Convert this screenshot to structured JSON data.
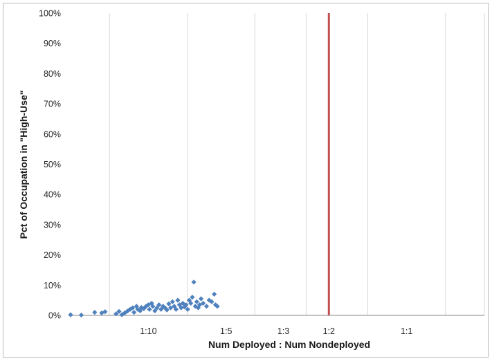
{
  "chart_data": {
    "type": "scatter",
    "title": "",
    "xlabel": "Num Deployed : Num Nondeployed",
    "ylabel": "Pct of Occupation in \"High-Use\"",
    "x_scale": "log",
    "x_quantity": "ratio deployed to nondeployed",
    "xlim": [
      0.05,
      2
    ],
    "x_ticks": [
      {
        "value": 0.1,
        "label": "1:10"
      },
      {
        "value": 0.2,
        "label": "1:5"
      },
      {
        "value": 0.3333,
        "label": "1:3"
      },
      {
        "value": 0.5,
        "label": "1:2"
      },
      {
        "value": 1.0,
        "label": "1:1"
      }
    ],
    "ylim": [
      0,
      100
    ],
    "y_ticks": [
      "0%",
      "10%",
      "20%",
      "30%",
      "40%",
      "50%",
      "60%",
      "70%",
      "80%",
      "90%",
      "100%"
    ],
    "grid": {
      "horizontal": false,
      "vertical": true
    },
    "vertical_line": {
      "x": 0.5,
      "color": "#c0504d"
    },
    "marker_color": "#4f81bd",
    "series": [
      {
        "points": [
          [
            0.05,
            0.2
          ],
          [
            0.055,
            0.1
          ],
          [
            0.062,
            1.0
          ],
          [
            0.066,
            0.8
          ],
          [
            0.068,
            1.2
          ],
          [
            0.075,
            0.5
          ],
          [
            0.077,
            1.3
          ],
          [
            0.079,
            0.2
          ],
          [
            0.081,
            0.8
          ],
          [
            0.083,
            1.4
          ],
          [
            0.085,
            2.0
          ],
          [
            0.087,
            2.5
          ],
          [
            0.088,
            1.0
          ],
          [
            0.09,
            3.0
          ],
          [
            0.091,
            2.0
          ],
          [
            0.093,
            1.5
          ],
          [
            0.094,
            2.6
          ],
          [
            0.096,
            2.2
          ],
          [
            0.098,
            3.0
          ],
          [
            0.1,
            3.5
          ],
          [
            0.101,
            2.0
          ],
          [
            0.103,
            4.0
          ],
          [
            0.104,
            3.0
          ],
          [
            0.106,
            1.5
          ],
          [
            0.108,
            2.5
          ],
          [
            0.11,
            3.5
          ],
          [
            0.112,
            2.0
          ],
          [
            0.114,
            3.0
          ],
          [
            0.116,
            2.5
          ],
          [
            0.118,
            1.8
          ],
          [
            0.12,
            3.8
          ],
          [
            0.122,
            2.5
          ],
          [
            0.124,
            4.5
          ],
          [
            0.126,
            3.0
          ],
          [
            0.128,
            2.0
          ],
          [
            0.13,
            5.0
          ],
          [
            0.132,
            3.5
          ],
          [
            0.134,
            2.5
          ],
          [
            0.136,
            4.0
          ],
          [
            0.138,
            2.8
          ],
          [
            0.14,
            3.5
          ],
          [
            0.142,
            2.0
          ],
          [
            0.144,
            5.0
          ],
          [
            0.146,
            4.0
          ],
          [
            0.148,
            6.0
          ],
          [
            0.15,
            11.0
          ],
          [
            0.152,
            3.0
          ],
          [
            0.154,
            4.5
          ],
          [
            0.156,
            2.5
          ],
          [
            0.158,
            3.5
          ],
          [
            0.16,
            5.5
          ],
          [
            0.163,
            4.0
          ],
          [
            0.168,
            3.0
          ],
          [
            0.172,
            5.0
          ],
          [
            0.176,
            4.5
          ],
          [
            0.18,
            7.0
          ],
          [
            0.182,
            3.5
          ],
          [
            0.185,
            3.0
          ]
        ]
      }
    ]
  }
}
